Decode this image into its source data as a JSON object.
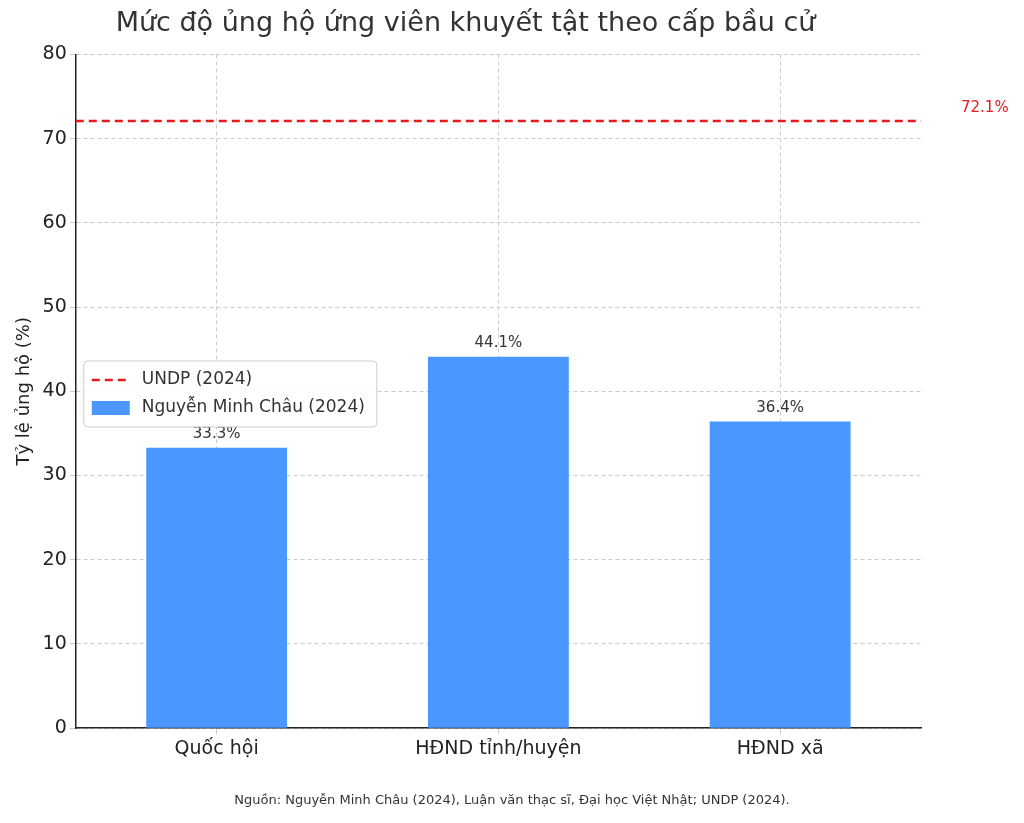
{
  "chart_data": {
    "type": "bar",
    "title": "Mức độ ủng hộ ứng viên khuyết tật theo cấp bầu cử",
    "ylabel": "Tỷ lệ ủng hộ (%)",
    "categories": [
      "Quốc hội",
      "HĐND tỉnh/huyện",
      "HĐND xã"
    ],
    "series": [
      {
        "name": "Nguyễn Minh Châu (2024)",
        "color": "#4a98ff",
        "values": [
          33.3,
          44.1,
          36.4
        ]
      }
    ],
    "value_labels": [
      "33.3%",
      "44.1%",
      "36.4%"
    ],
    "ylim": [
      0,
      80
    ],
    "yticks": [
      0,
      10,
      20,
      30,
      40,
      50,
      60,
      70,
      80
    ],
    "grid": true,
    "legend": "left",
    "ref_lines": [
      {
        "axis": "y",
        "value": 72.1,
        "label": "UNDP (2024)",
        "color": "#e41a1c",
        "line_style": "dashed"
      }
    ],
    "annotations": [
      "72.1%",
      "Nguồn: Nguyễn Minh Châu (2024), Luận văn thạc sĩ, Đại học Việt Nhật; UNDP (2024)."
    ]
  }
}
